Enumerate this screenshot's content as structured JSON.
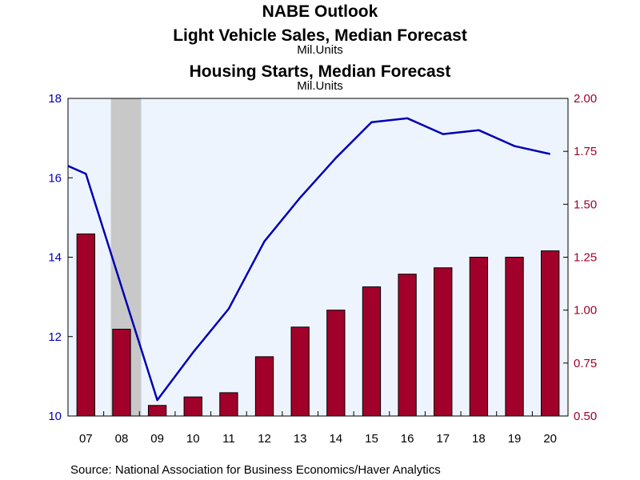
{
  "chart_data": {
    "type": "bar-line-dual-axis",
    "title": "NABE Outlook",
    "line_series": {
      "name": "Light Vehicle Sales, Median Forecast",
      "unit": "Mil.Units",
      "color": "#0000b4",
      "x": [
        2006.5,
        2007,
        2009,
        2010,
        2011,
        2012,
        2013,
        2014,
        2015,
        2016,
        2017,
        2018,
        2019,
        2020
      ],
      "values": [
        16.3,
        16.1,
        10.4,
        11.6,
        12.7,
        14.4,
        15.5,
        16.5,
        17.4,
        17.5,
        17.1,
        17.2,
        16.8,
        16.6
      ]
    },
    "bar_series": {
      "name": "Housing Starts, Median Forecast",
      "unit": "Mil.Units",
      "color": "#a0002a",
      "categories": [
        "07",
        "08",
        "09",
        "10",
        "11",
        "12",
        "13",
        "14",
        "15",
        "16",
        "17",
        "18",
        "19",
        "20"
      ],
      "values": [
        1.36,
        0.91,
        0.55,
        0.59,
        0.61,
        0.78,
        0.92,
        1.0,
        1.11,
        1.17,
        1.2,
        1.25,
        1.25,
        1.28
      ]
    },
    "y_left": {
      "min": 10,
      "max": 18,
      "ticks": [
        "10",
        "12",
        "14",
        "16",
        "18"
      ],
      "color": "#0000b4"
    },
    "y_right": {
      "min": 0.5,
      "max": 2.0,
      "ticks": [
        "0.50",
        "0.75",
        "1.00",
        "1.25",
        "1.50",
        "1.75",
        "2.00"
      ],
      "color": "#a0002a"
    },
    "recession_shading": {
      "from_year": 2008,
      "to_year": 2009,
      "color": "#c8c8c8"
    },
    "background_color": "#eef4fd",
    "source": "Source:  National Association for Business Economics/Haver Analytics"
  }
}
